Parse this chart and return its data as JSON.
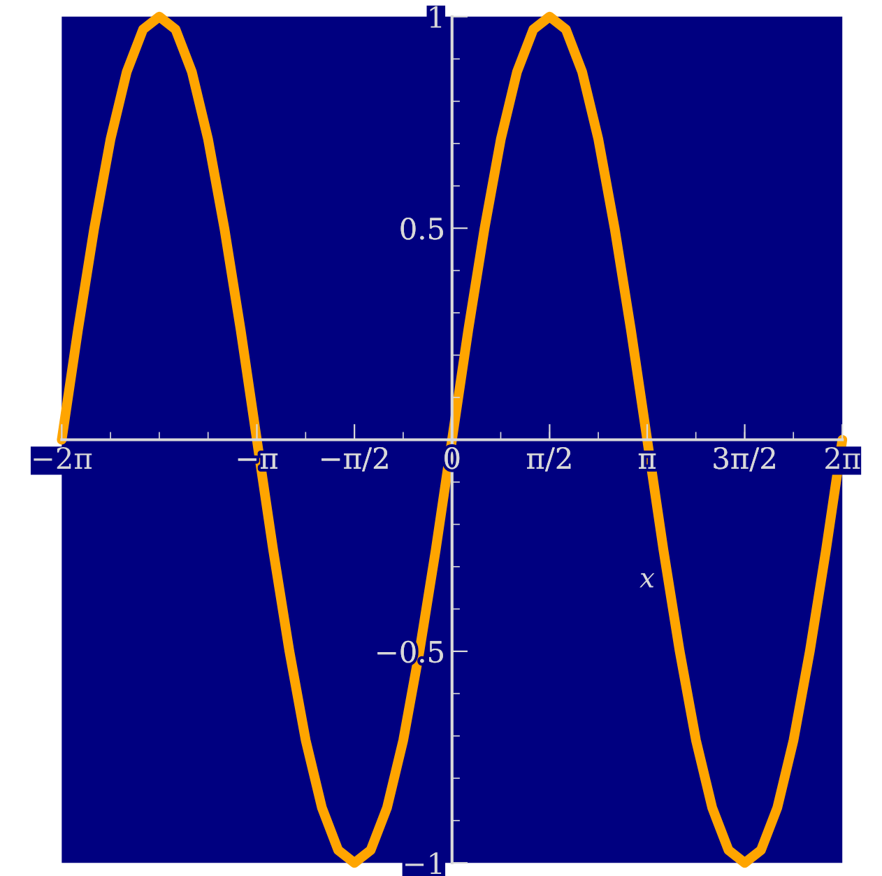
{
  "chart_data": {
    "type": "line",
    "xlabel": "x",
    "x": [
      -6.283,
      -6.021,
      -5.76,
      -5.498,
      -5.236,
      -4.974,
      -4.712,
      -4.451,
      -4.189,
      -3.927,
      -3.665,
      -3.403,
      -3.142,
      -2.88,
      -2.618,
      -2.356,
      -2.094,
      -1.833,
      -1.571,
      -1.309,
      -1.047,
      -0.785,
      -0.524,
      -0.262,
      0,
      0.262,
      0.524,
      0.785,
      1.047,
      1.309,
      1.571,
      1.833,
      2.094,
      2.356,
      2.618,
      2.88,
      3.142,
      3.403,
      3.665,
      3.927,
      4.189,
      4.451,
      4.712,
      4.974,
      5.236,
      5.498,
      5.76,
      6.021,
      6.283
    ],
    "series": [
      {
        "color": "#ffa500",
        "values": [
          0,
          0.26,
          0.5,
          0.71,
          0.87,
          0.97,
          1,
          0.97,
          0.87,
          0.71,
          0.5,
          0.26,
          0,
          -0.26,
          -0.5,
          -0.71,
          -0.87,
          -0.97,
          -1,
          -0.97,
          -0.87,
          -0.71,
          -0.5,
          -0.26,
          0,
          0.26,
          0.5,
          0.71,
          0.87,
          0.97,
          1,
          0.97,
          0.87,
          0.71,
          0.5,
          0.26,
          0,
          -0.26,
          -0.5,
          -0.71,
          -0.87,
          -0.97,
          -1,
          -0.97,
          -0.87,
          -0.71,
          -0.5,
          -0.26,
          0
        ]
      }
    ],
    "xlim": [
      -6.283,
      6.283
    ],
    "ylim": [
      -1,
      1
    ],
    "xticks": [
      {
        "value": -6.283,
        "label": "−2π"
      },
      {
        "value": -3.142,
        "label": "−π"
      },
      {
        "value": -1.571,
        "label": "−π/2"
      },
      0,
      {
        "value": 1.571,
        "label": "π/2"
      },
      {
        "value": 3.142,
        "label": "π"
      },
      {
        "value": 4.712,
        "label": "3π/2"
      },
      {
        "value": 6.283,
        "label": "2π"
      }
    ],
    "yticks": [
      1,
      0.5,
      {
        "value": -0.5,
        "label": "−0.5"
      },
      {
        "value": -1,
        "label": "−1"
      }
    ],
    "grid": false,
    "legend": false,
    "marker": "none",
    "line_style": "solid"
  }
}
